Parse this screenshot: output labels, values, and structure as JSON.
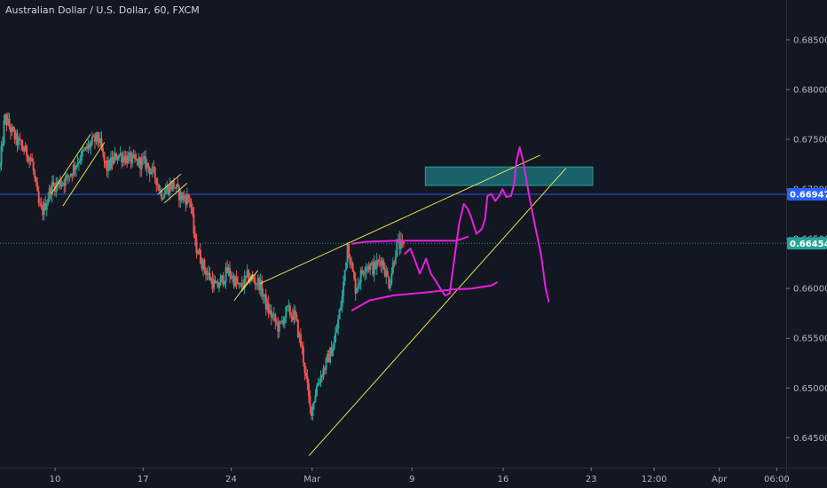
{
  "chart_data": {
    "type": "candlestick",
    "title": "Australian Dollar / U.S. Dollar, 60, FXCM",
    "ylim": [
      0.642,
      0.689
    ],
    "x_range": [
      0,
      100
    ],
    "y_ticks": [
      {
        "value": 0.685,
        "label": "0.68500"
      },
      {
        "value": 0.68,
        "label": "0.68000"
      },
      {
        "value": 0.675,
        "label": "0.67500"
      },
      {
        "value": 0.67,
        "label": "0.67000"
      },
      {
        "value": 0.665,
        "label": "0.66500"
      },
      {
        "value": 0.66,
        "label": "0.66000"
      },
      {
        "value": 0.655,
        "label": "0.65500"
      },
      {
        "value": 0.65,
        "label": "0.65000"
      },
      {
        "value": 0.645,
        "label": "0.64500"
      }
    ],
    "x_ticks": [
      {
        "x": 7.0,
        "label": "10"
      },
      {
        "x": 18.2,
        "label": "17"
      },
      {
        "x": 29.4,
        "label": "24"
      },
      {
        "x": 39.7,
        "label": "Mar"
      },
      {
        "x": 52.4,
        "label": "9"
      },
      {
        "x": 64.0,
        "label": "16"
      },
      {
        "x": 75.2,
        "label": "23"
      },
      {
        "x": 83.2,
        "label": "12:00"
      },
      {
        "x": 91.5,
        "label": "Apr"
      },
      {
        "x": 98.8,
        "label": "06:00"
      }
    ],
    "price_tags": [
      {
        "value": 0.66947,
        "label": "0.66947",
        "color": "#2962ff",
        "line": "solid"
      },
      {
        "value": 0.66454,
        "label": "0.66454",
        "color": "#26a69a",
        "line": "dotted"
      }
    ],
    "up_color": "#26a69a",
    "down_color": "#ef5350",
    "grid": false,
    "anchors": [
      [
        0,
        0.6722
      ],
      [
        0.6,
        0.6772
      ],
      [
        2,
        0.675
      ],
      [
        4,
        0.673
      ],
      [
        5,
        0.668
      ],
      [
        5.5,
        0.6678
      ],
      [
        6.5,
        0.6702
      ],
      [
        8.5,
        0.671
      ],
      [
        10,
        0.673
      ],
      [
        11.5,
        0.6745
      ],
      [
        12.5,
        0.6752
      ],
      [
        13.5,
        0.672
      ],
      [
        15,
        0.6735
      ],
      [
        17,
        0.6728
      ],
      [
        18.5,
        0.6726
      ],
      [
        19.8,
        0.6712
      ],
      [
        20.5,
        0.6695
      ],
      [
        22,
        0.6705
      ],
      [
        23,
        0.6692
      ],
      [
        24.2,
        0.669
      ],
      [
        24.8,
        0.6645
      ],
      [
        26,
        0.662
      ],
      [
        27.5,
        0.66
      ],
      [
        29,
        0.6618
      ],
      [
        30.5,
        0.66
      ],
      [
        31.5,
        0.6612
      ],
      [
        33,
        0.6605
      ],
      [
        34,
        0.658
      ],
      [
        35.5,
        0.656
      ],
      [
        36.5,
        0.6578
      ],
      [
        37.5,
        0.6572
      ],
      [
        38.5,
        0.6535
      ],
      [
        39.5,
        0.6475
      ],
      [
        40.4,
        0.6505
      ],
      [
        41.5,
        0.6525
      ],
      [
        42.5,
        0.6545
      ],
      [
        43.5,
        0.659
      ],
      [
        44.2,
        0.6645
      ],
      [
        45.2,
        0.66
      ],
      [
        46.5,
        0.6625
      ],
      [
        47.5,
        0.662
      ],
      [
        48.5,
        0.663
      ],
      [
        49.5,
        0.6605
      ],
      [
        50.5,
        0.6645
      ],
      [
        51.5,
        0.664
      ]
    ],
    "range_box": {
      "x0": 54.1,
      "x1": 75.4,
      "y_top": 0.67222,
      "y_bottom": 0.67036,
      "color": "#1a6b73"
    },
    "yellow_lines": [
      [
        [
          39.3,
          0.6432
        ],
        [
          72.0,
          0.6721
        ]
      ],
      [
        [
          33.1,
          0.6605
        ],
        [
          68.7,
          0.6734
        ]
      ],
      [
        [
          6.5,
          0.6695
        ],
        [
          11.5,
          0.6755
        ]
      ],
      [
        [
          8.0,
          0.6683
        ],
        [
          13.3,
          0.6747
        ]
      ],
      [
        [
          20.1,
          0.6695
        ],
        [
          23.0,
          0.6715
        ]
      ],
      [
        [
          20.9,
          0.6686
        ],
        [
          23.8,
          0.6706
        ]
      ],
      [
        [
          29.8,
          0.6588
        ],
        [
          32.2,
          0.6614
        ]
      ],
      [
        [
          30.7,
          0.6597
        ],
        [
          32.8,
          0.6618
        ]
      ]
    ],
    "pink_lines": [
      [
        [
          44.8,
          0.6645
        ],
        [
          46.5,
          0.6647
        ],
        [
          50.5,
          0.6648
        ],
        [
          54.0,
          0.6648
        ],
        [
          58.0,
          0.6648
        ],
        [
          59.5,
          0.6652
        ]
      ],
      [
        [
          44.8,
          0.6578
        ],
        [
          47.0,
          0.6588
        ],
        [
          50.0,
          0.6593
        ],
        [
          54.0,
          0.6596
        ],
        [
          57.5,
          0.6599
        ],
        [
          60.0,
          0.66
        ],
        [
          62.5,
          0.6603
        ],
        [
          63.2,
          0.6606
        ]
      ],
      [
        [
          51.5,
          0.6635
        ],
        [
          52.2,
          0.664
        ],
        [
          52.8,
          0.6628
        ],
        [
          53.4,
          0.6615
        ],
        [
          54.2,
          0.663
        ],
        [
          54.8,
          0.6615
        ],
        [
          55.4,
          0.6608
        ],
        [
          56.0,
          0.66
        ],
        [
          56.6,
          0.6593
        ],
        [
          57.2,
          0.6595
        ],
        [
          57.8,
          0.663
        ],
        [
          58.4,
          0.6665
        ],
        [
          59.0,
          0.6685
        ],
        [
          59.5,
          0.668
        ],
        [
          60.0,
          0.667
        ],
        [
          60.6,
          0.6655
        ],
        [
          61.3,
          0.666
        ],
        [
          61.7,
          0.667
        ],
        [
          62.0,
          0.6693
        ],
        [
          62.5,
          0.6695
        ],
        [
          63.0,
          0.6688
        ],
        [
          63.5,
          0.6693
        ],
        [
          63.9,
          0.67
        ],
        [
          64.4,
          0.6692
        ],
        [
          65.0,
          0.6693
        ],
        [
          65.4,
          0.6705
        ],
        [
          65.7,
          0.6728
        ],
        [
          66.1,
          0.6742
        ],
        [
          66.5,
          0.673
        ],
        [
          67.2,
          0.6698
        ],
        [
          68.0,
          0.6665
        ],
        [
          68.8,
          0.6635
        ],
        [
          69.4,
          0.66
        ],
        [
          69.8,
          0.6587
        ]
      ]
    ]
  }
}
